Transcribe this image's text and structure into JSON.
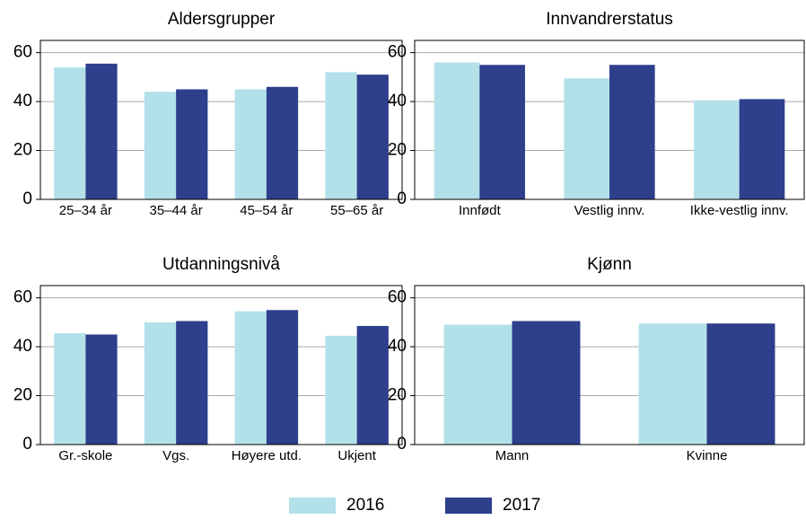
{
  "chart_data": [
    {
      "type": "bar",
      "title": "Aldersgrupper",
      "categories": [
        "25–34 år",
        "35–44 år",
        "45–54 år",
        "55–65 år"
      ],
      "series": [
        {
          "name": "2016",
          "color": "#b3e1e9",
          "values": [
            54,
            44,
            45,
            52
          ]
        },
        {
          "name": "2017",
          "color": "#2e3f8c",
          "values": [
            55.5,
            45,
            46,
            51
          ]
        }
      ],
      "ylim": [
        0,
        65
      ],
      "yticks": [
        0,
        20,
        40,
        60
      ],
      "grid": true
    },
    {
      "type": "bar",
      "title": "Innvandrerstatus",
      "categories": [
        "Innfødt",
        "Vestlig innv.",
        "Ikke-vestlig innv."
      ],
      "series": [
        {
          "name": "2016",
          "color": "#b3e1e9",
          "values": [
            56,
            49.5,
            40.5
          ]
        },
        {
          "name": "2017",
          "color": "#2e3f8c",
          "values": [
            55,
            55,
            41
          ]
        }
      ],
      "ylim": [
        0,
        65
      ],
      "yticks": [
        0,
        20,
        40,
        60
      ],
      "grid": true
    },
    {
      "type": "bar",
      "title": "Utdanningsnivå",
      "categories": [
        "Gr.-skole",
        "Vgs.",
        "Høyere utd.",
        "Ukjent"
      ],
      "series": [
        {
          "name": "2016",
          "color": "#b3e1e9",
          "values": [
            45.5,
            50,
            54.5,
            44.5
          ]
        },
        {
          "name": "2017",
          "color": "#2e3f8c",
          "values": [
            45,
            50.5,
            55,
            48.5
          ]
        }
      ],
      "ylim": [
        0,
        65
      ],
      "yticks": [
        0,
        20,
        40,
        60
      ],
      "grid": true
    },
    {
      "type": "bar",
      "title": "Kjønn",
      "categories": [
        "Mann",
        "Kvinne"
      ],
      "series": [
        {
          "name": "2016",
          "color": "#b3e1e9",
          "values": [
            49,
            49.5
          ]
        },
        {
          "name": "2017",
          "color": "#2e3f8c",
          "values": [
            50.5,
            49.5
          ]
        }
      ],
      "ylim": [
        0,
        65
      ],
      "yticks": [
        0,
        20,
        40,
        60
      ],
      "grid": true
    }
  ]
}
